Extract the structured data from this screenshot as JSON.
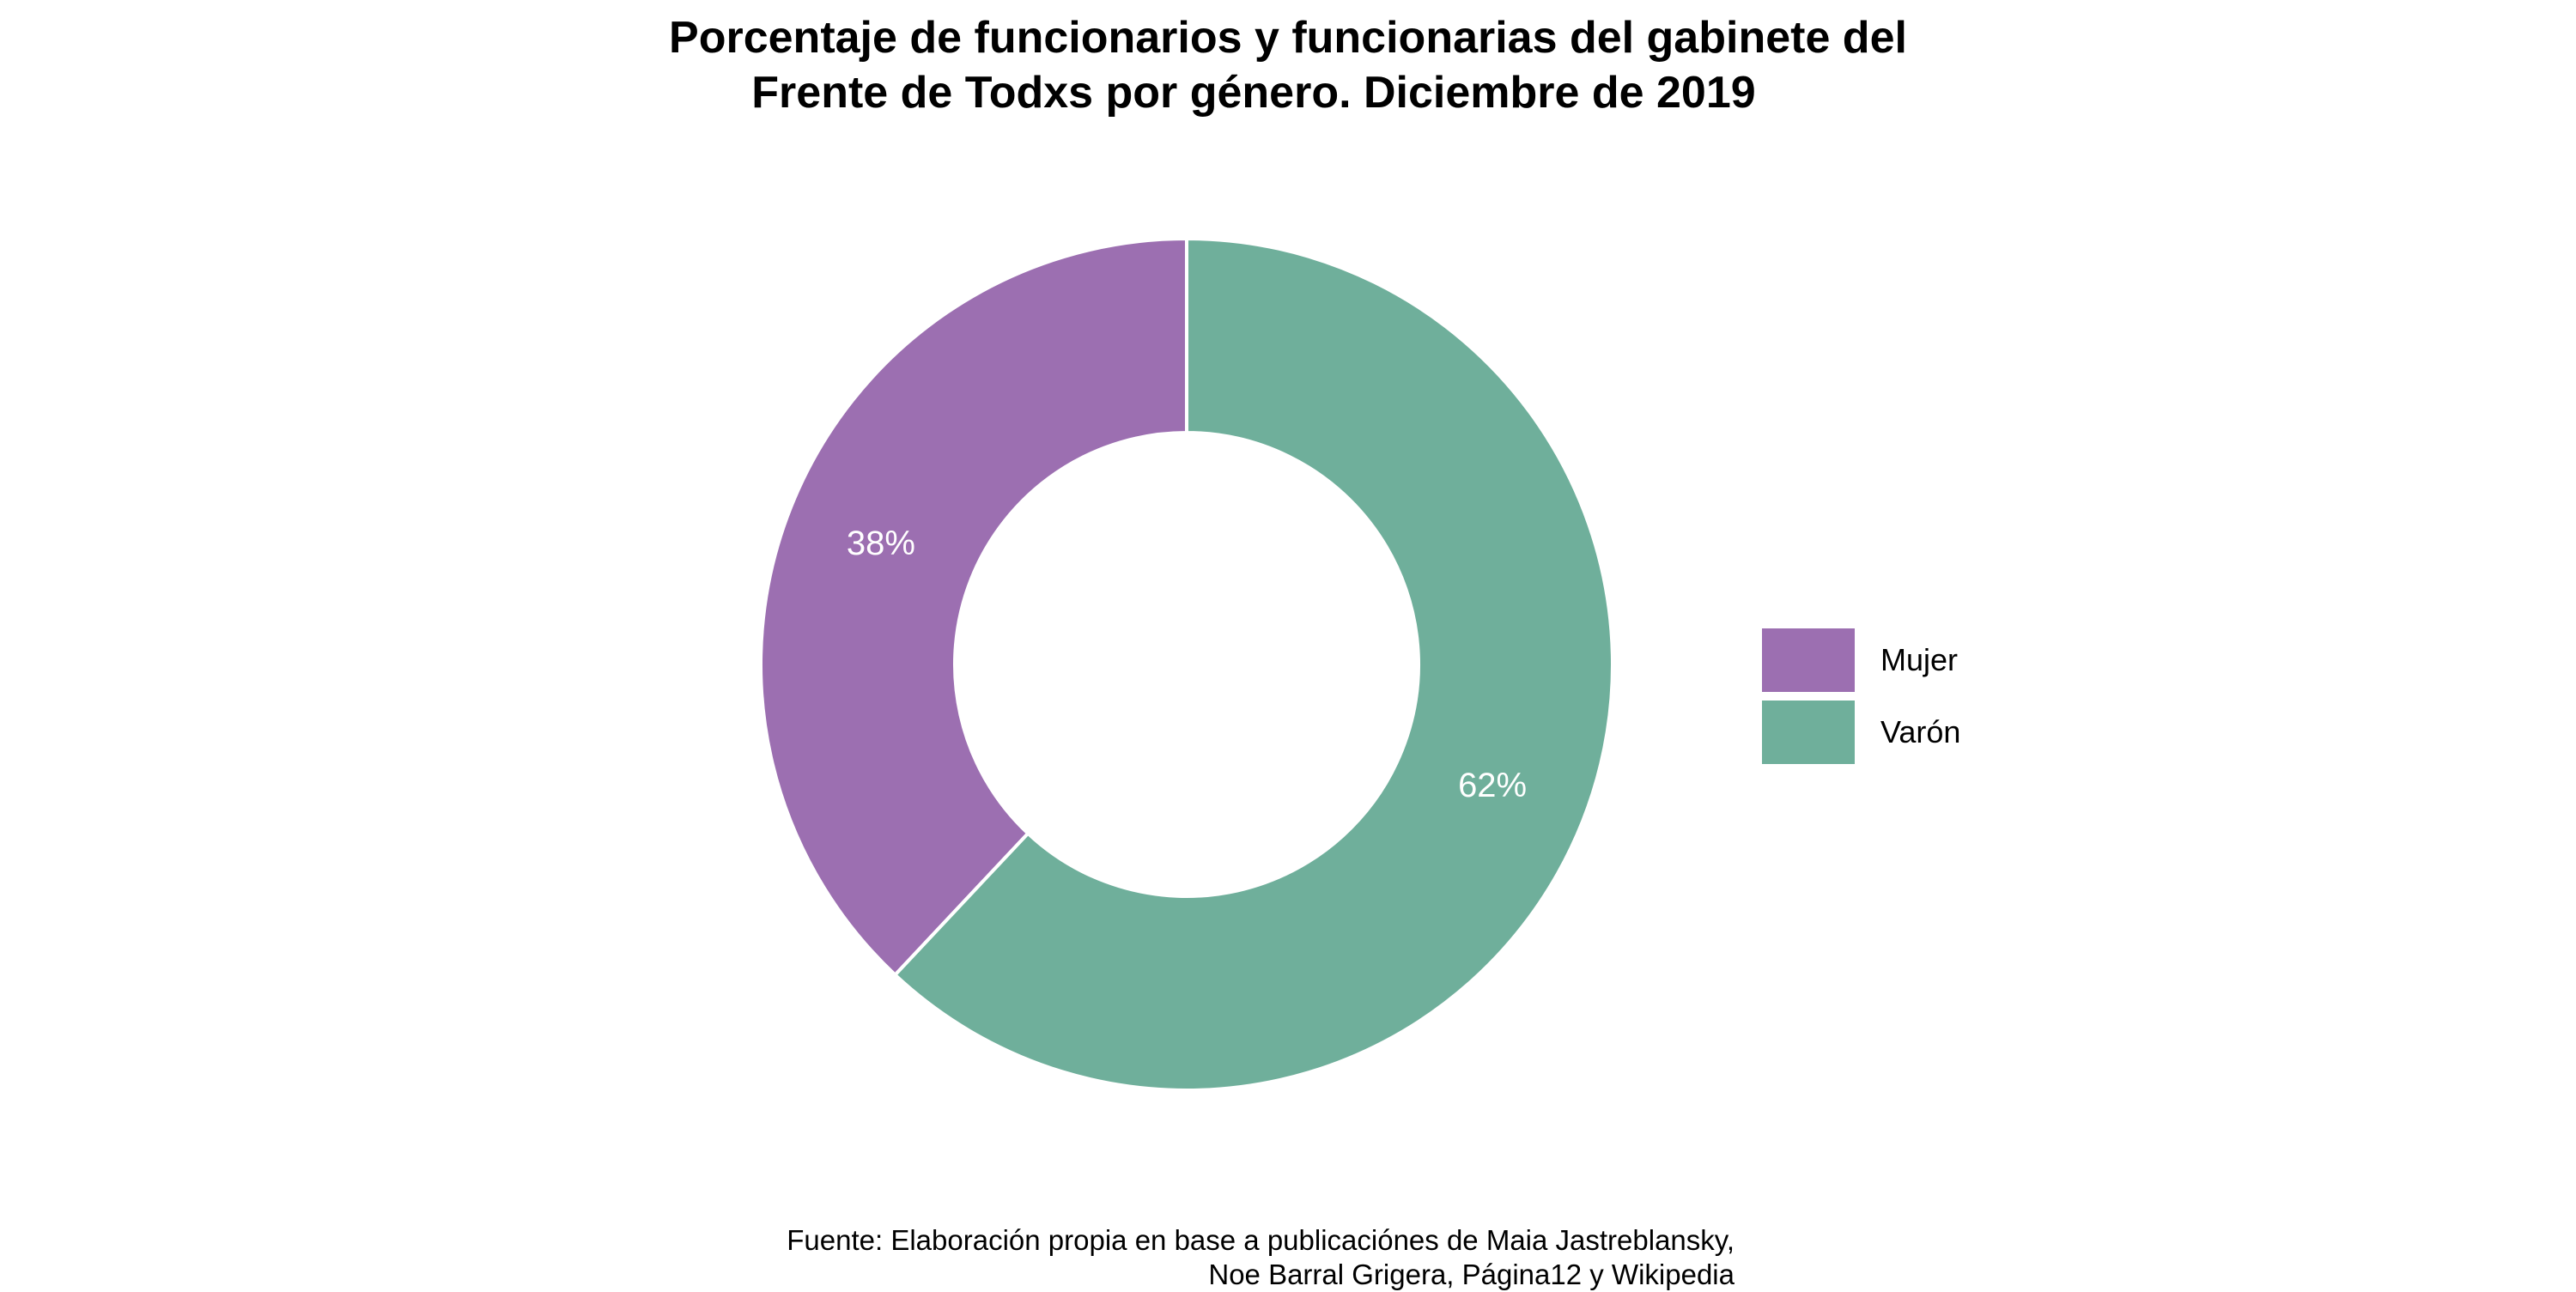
{
  "chart_data": {
    "type": "pie",
    "style": "donut",
    "title_lines": [
      "Porcentaje de funcionarios y funcionarias del gabinete del",
      "Frente de Todxs por género. Diciembre de 2019"
    ],
    "slices": [
      {
        "name": "Mujer",
        "value": 38,
        "label": "38%",
        "color": "#9c6fb1"
      },
      {
        "name": "Varón",
        "value": 62,
        "label": "62%",
        "color": "#6faf9b"
      }
    ],
    "legend": {
      "placement": "right",
      "entries": [
        "Mujer",
        "Varón"
      ]
    },
    "caption_lines": [
      "Fuente: Elaboración propia en base a publicaciónes de Maia Jastreblansky,",
      "Noe Barral Grigera, Página12 y Wikipedia"
    ]
  }
}
